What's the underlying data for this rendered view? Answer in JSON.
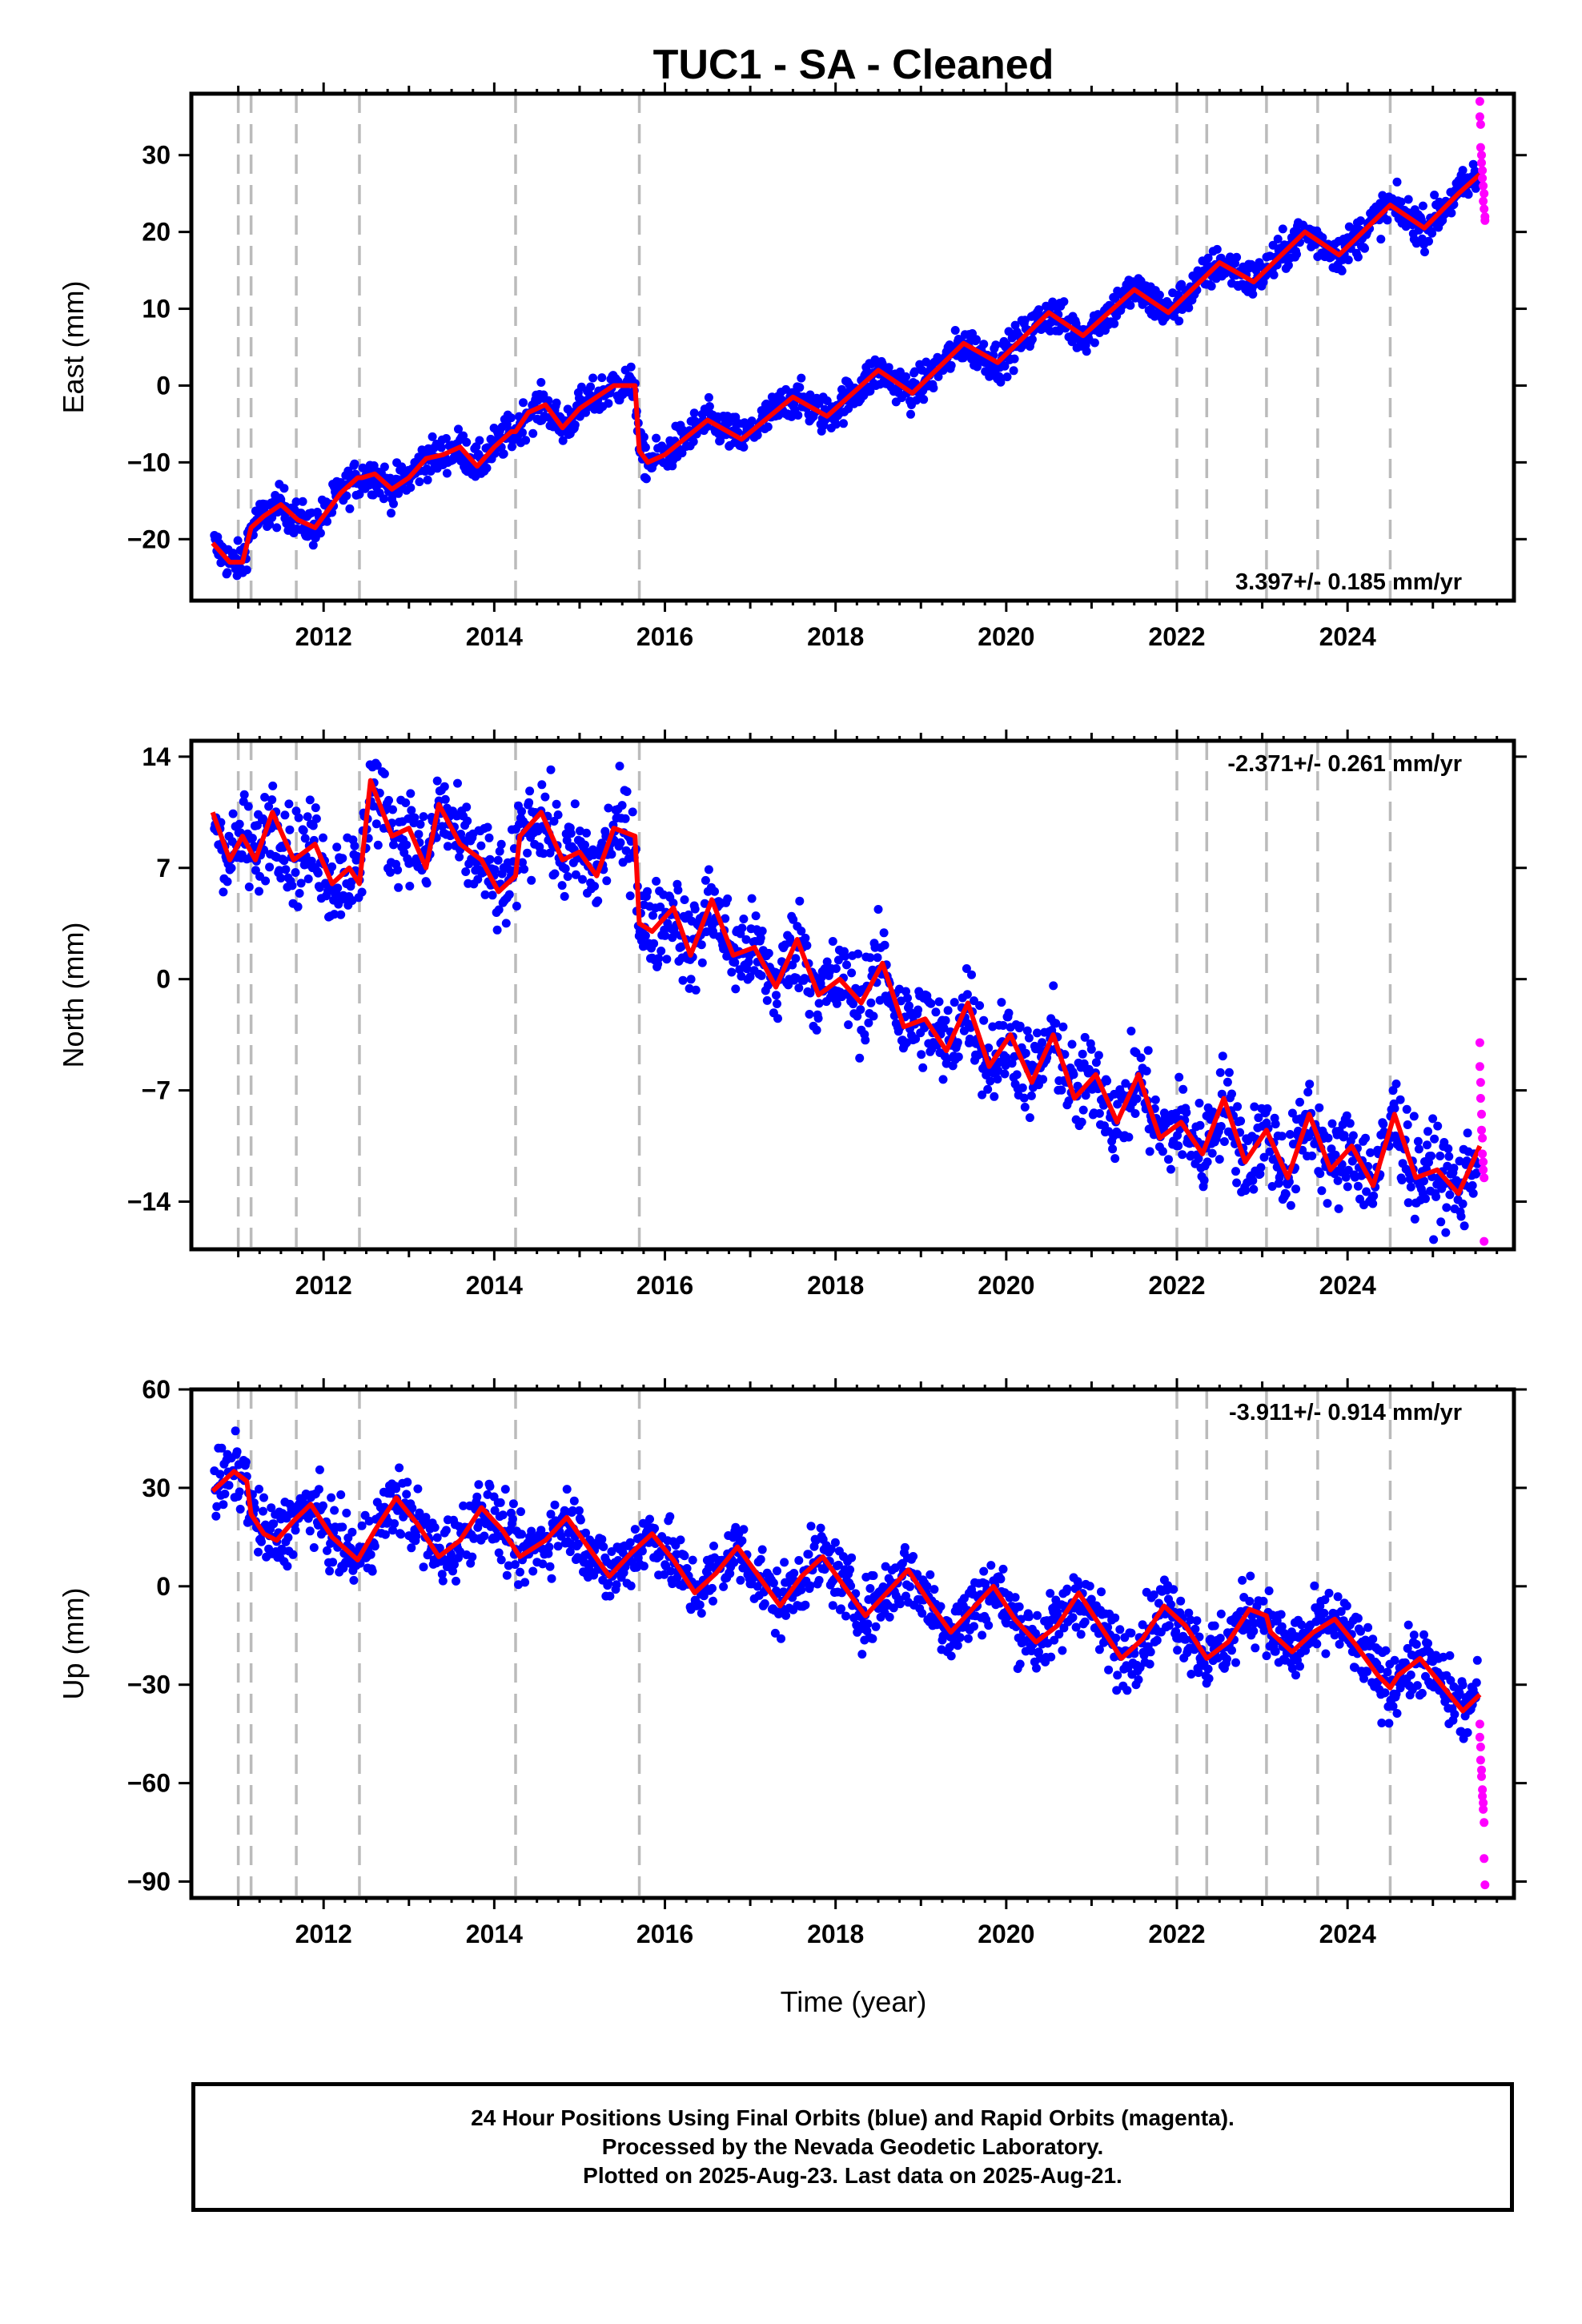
{
  "chart_data": {
    "title": "TUC1  - SA - Cleaned",
    "type": "scatter",
    "xlabel": "Time (year)",
    "x_ticks": [
      "2012",
      "2014",
      "2016",
      "2018",
      "2020",
      "2022",
      "2024"
    ],
    "xlim": [
      2010.45,
      2025.95
    ],
    "equipment_change_epochs": [
      2011.0,
      2011.15,
      2011.68,
      2012.42,
      2014.25,
      2015.7,
      2022.0,
      2022.35,
      2023.05,
      2023.65,
      2024.5
    ],
    "colors": {
      "final_orbits": "#0000ff",
      "rapid_orbits": "#ff00ff",
      "model": "#ff0000",
      "equipment_change": "#bbbbbb"
    },
    "legend": "none",
    "grid": false,
    "panels": [
      {
        "ylabel": "East (mm)",
        "ylim": [
          -28,
          38
        ],
        "y_ticks": [
          -20,
          -10,
          0,
          10,
          20,
          30
        ],
        "y_tick_labels": [
          "−20",
          "−10",
          "0",
          "10",
          "20",
          "30"
        ],
        "rate_label": "3.397+/- 0.185 mm/yr",
        "rate_pos": "bottom-right",
        "series": [
          {
            "name": "",
            "role": "model_line",
            "x": [
              2010.7,
              2010.9,
              2011.05,
              2011.15,
              2011.3,
              2011.5,
              2011.7,
              2011.9,
              2012.0,
              2012.2,
              2012.4,
              2012.45,
              2012.6,
              2012.8,
              2013.0,
              2013.2,
              2013.4,
              2013.6,
              2013.8,
              2014.0,
              2014.2,
              2014.25,
              2014.4,
              2014.6,
              2014.8,
              2015.0,
              2015.2,
              2015.4,
              2015.65,
              2015.7,
              2015.8,
              2016.0,
              2016.5,
              2016.9,
              2017.5,
              2017.9,
              2018.5,
              2018.9,
              2019.5,
              2019.9,
              2020.5,
              2020.9,
              2021.5,
              2021.9,
              2022.5,
              2022.9,
              2023.5,
              2023.9,
              2024.5,
              2024.9,
              2025.3,
              2025.55
            ],
            "y": [
              -20.5,
              -23,
              -23,
              -18.5,
              -17,
              -15.5,
              -17.5,
              -18.5,
              -17,
              -14,
              -12,
              -12,
              -11.5,
              -13.5,
              -12,
              -9.5,
              -9,
              -8,
              -10.5,
              -8,
              -6,
              -6,
              -3.5,
              -2.5,
              -5.5,
              -3,
              -1.5,
              0,
              0,
              -8.5,
              -10,
              -9,
              -4.5,
              -7,
              -1.5,
              -4,
              2,
              -1,
              5.5,
              3,
              9.5,
              6.5,
              12.5,
              9.5,
              16,
              13.5,
              20,
              17,
              23.5,
              20.5,
              25,
              27.5
            ]
          },
          {
            "name": "",
            "role": "rapid_orbits",
            "x": [
              2025.55,
              2025.55,
              2025.56,
              2025.56,
              2025.57,
              2025.57,
              2025.58,
              2025.58,
              2025.59,
              2025.59,
              2025.6,
              2025.6,
              2025.61,
              2025.61
            ],
            "y": [
              37,
              35,
              34,
              31,
              30,
              29,
              28,
              27,
              26,
              24,
              25,
              23,
              22,
              21.5
            ]
          }
        ]
      },
      {
        "ylabel": "North (mm)",
        "ylim": [
          -17,
          15
        ],
        "y_ticks": [
          -14,
          -7,
          0,
          7,
          14
        ],
        "y_tick_labels": [
          "−14",
          "−7",
          "0",
          "7",
          "14"
        ],
        "rate_label": "-2.371+/- 0.261 mm/yr",
        "rate_pos": "top-right",
        "series": [
          {
            "name": "",
            "role": "model_line",
            "x": [
              2010.7,
              2010.9,
              2011.05,
              2011.2,
              2011.4,
              2011.65,
              2011.9,
              2012.1,
              2012.3,
              2012.42,
              2012.55,
              2012.8,
              2013.0,
              2013.2,
              2013.35,
              2013.6,
              2013.85,
              2014.05,
              2014.25,
              2014.3,
              2014.55,
              2014.8,
              2015.0,
              2015.2,
              2015.4,
              2015.65,
              2015.7,
              2015.85,
              2016.1,
              2016.3,
              2016.55,
              2016.8,
              2017.05,
              2017.3,
              2017.55,
              2017.8,
              2018.05,
              2018.3,
              2018.55,
              2018.8,
              2019.05,
              2019.3,
              2019.55,
              2019.8,
              2020.05,
              2020.3,
              2020.55,
              2020.8,
              2021.05,
              2021.3,
              2021.55,
              2021.8,
              2022.05,
              2022.3,
              2022.55,
              2022.8,
              2023.05,
              2023.3,
              2023.55,
              2023.8,
              2024.05,
              2024.3,
              2024.55,
              2024.8,
              2025.05,
              2025.3,
              2025.55
            ],
            "y": [
              10.5,
              7.5,
              9,
              7.5,
              10.5,
              7.5,
              8.5,
              6,
              7,
              6,
              12.5,
              9,
              9.5,
              7,
              11,
              8.5,
              7.5,
              5.5,
              6.5,
              9,
              10.5,
              7.5,
              8,
              6.5,
              9.5,
              9,
              3.5,
              3,
              4.5,
              1.5,
              5,
              1.5,
              2,
              -0.5,
              2.5,
              -1,
              0,
              -1.5,
              1,
              -3,
              -2.5,
              -4.5,
              -1.5,
              -5.5,
              -3.5,
              -6.5,
              -3.5,
              -7.5,
              -6,
              -9,
              -6,
              -10,
              -9,
              -11,
              -7.5,
              -11.5,
              -9.5,
              -12.5,
              -8.5,
              -12,
              -10.5,
              -13,
              -8.5,
              -12.5,
              -12,
              -13.5,
              -10.5
            ]
          },
          {
            "name": "",
            "role": "rapid_orbits",
            "x": [
              2025.55,
              2025.55,
              2025.56,
              2025.56,
              2025.57,
              2025.57,
              2025.58,
              2025.58,
              2025.59,
              2025.59,
              2025.6,
              2025.6
            ],
            "y": [
              -4,
              -5.5,
              -6.5,
              -7.5,
              -8.5,
              -9.5,
              -10,
              -11,
              -11.5,
              -12,
              -12.5,
              -16.5
            ]
          }
        ]
      },
      {
        "ylabel": "Up (mm)",
        "ylim": [
          -95,
          60
        ],
        "y_ticks": [
          -90,
          -60,
          -30,
          0,
          30,
          60
        ],
        "y_tick_labels": [
          "−90",
          "−60",
          "−30",
          "0",
          "30",
          "60"
        ],
        "rate_label": "-3.911+/- 0.914 mm/yr",
        "rate_pos": "top-right",
        "series": [
          {
            "name": "",
            "role": "model_line",
            "x": [
              2010.7,
              2010.95,
              2011.1,
              2011.15,
              2011.3,
              2011.45,
              2011.65,
              2011.85,
              2012.1,
              2012.4,
              2012.6,
              2012.85,
              2013.1,
              2013.35,
              2013.6,
              2013.85,
              2014.1,
              2014.3,
              2014.6,
              2014.85,
              2015.1,
              2015.35,
              2015.6,
              2015.85,
              2016.1,
              2016.35,
              2016.6,
              2016.85,
              2017.1,
              2017.35,
              2017.6,
              2017.85,
              2018.1,
              2018.35,
              2018.6,
              2018.85,
              2019.1,
              2019.35,
              2019.6,
              2019.85,
              2020.1,
              2020.35,
              2020.6,
              2020.85,
              2021.1,
              2021.35,
              2021.6,
              2021.85,
              2022.1,
              2022.35,
              2022.6,
              2022.85,
              2023.05,
              2023.1,
              2023.35,
              2023.6,
              2023.85,
              2024.1,
              2024.35,
              2024.5,
              2024.6,
              2024.85,
              2025.1,
              2025.35,
              2025.55
            ],
            "y": [
              29,
              35,
              32,
              22,
              16,
              14,
              20,
              25,
              15,
              8,
              17,
              27,
              19,
              9,
              14,
              24,
              17,
              9,
              14,
              21,
              12,
              3,
              10,
              16,
              8,
              -2,
              4,
              12,
              3,
              -6,
              3,
              9,
              0,
              -9,
              -2,
              5,
              -5,
              -14,
              -7,
              0,
              -10,
              -17,
              -12,
              -2,
              -12,
              -22,
              -16,
              -6,
              -12,
              -22,
              -17,
              -7,
              -9,
              -14,
              -20,
              -14,
              -10,
              -18,
              -27,
              -31,
              -27,
              -22,
              -30,
              -38,
              -33
            ]
          },
          {
            "name": "",
            "role": "rapid_orbits",
            "x": [
              2025.55,
              2025.55,
              2025.56,
              2025.56,
              2025.57,
              2025.57,
              2025.58,
              2025.58,
              2025.59,
              2025.59,
              2025.6,
              2025.6,
              2025.61
            ],
            "y": [
              -42,
              -46,
              -49,
              -53,
              -56,
              -58,
              -62,
              -64,
              -66,
              -68,
              -72,
              -83,
              -91
            ]
          }
        ]
      }
    ],
    "footer_lines": [
      "24 Hour Positions Using Final Orbits (blue) and Rapid Orbits (magenta).",
      "Processed by the Nevada Geodetic Laboratory.",
      "Plotted on 2025-Aug-23. Last data on 2025-Aug-21."
    ]
  }
}
